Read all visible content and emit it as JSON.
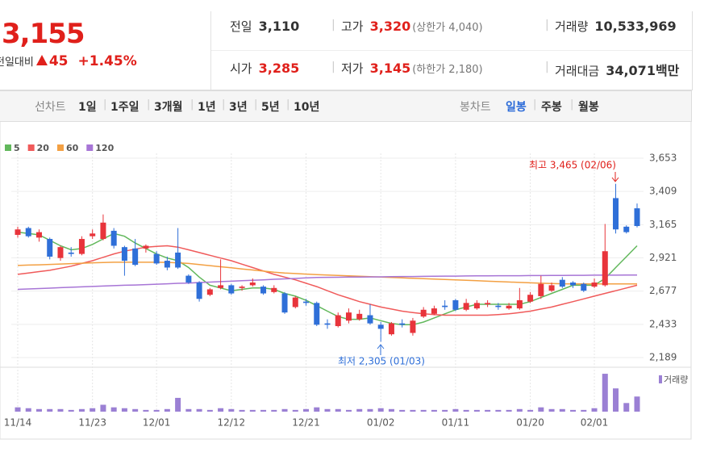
{
  "quote": {
    "price": "3,155",
    "change_label": "전일대비",
    "change": "45",
    "change_rate": "+1.45%",
    "items": [
      {
        "label": "전일",
        "value": "3,110"
      },
      {
        "label": "고가",
        "value": "3,320",
        "color": "#e0201b",
        "extra": "(상한가 4,040)"
      },
      {
        "label": "거래량",
        "value": "10,533,969"
      },
      {
        "label": "시가",
        "value": "3,285",
        "color": "#e0201b"
      },
      {
        "label": "저가",
        "value": "3,145",
        "color": "#e0201b",
        "extra": "(하한가 2,180)"
      },
      {
        "label": "거래대금",
        "value": "34,071백만"
      }
    ]
  },
  "toolbar": {
    "line_label": "선차트",
    "line_ranges": [
      "1일",
      "1주일",
      "3개월",
      "1년",
      "3년",
      "5년",
      "10년"
    ],
    "candle_label": "봉차트",
    "candle_ranges": [
      "일봉",
      "주봉",
      "월봉"
    ],
    "selected": "일봉"
  },
  "chart_data": {
    "type": "candlestick",
    "categories": [
      "11/14",
      null,
      null,
      null,
      null,
      null,
      null,
      "11/23",
      null,
      null,
      null,
      null,
      null,
      "12/01",
      null,
      null,
      null,
      null,
      null,
      null,
      "12/12",
      null,
      null,
      null,
      null,
      null,
      null,
      "12/21",
      null,
      null,
      null,
      null,
      null,
      null,
      "01/02",
      null,
      null,
      null,
      null,
      null,
      null,
      "01/11",
      null,
      null,
      null,
      null,
      null,
      null,
      "01/20",
      null,
      null,
      null,
      null,
      null,
      "02/01",
      null,
      null,
      null,
      null
    ],
    "open": [
      3090,
      3140,
      3070,
      3060,
      2920,
      2960,
      2950,
      3080,
      3060,
      3120,
      3000,
      2990,
      2990,
      2950,
      2900,
      2960,
      2790,
      2740,
      2650,
      2700,
      2720,
      2700,
      2720,
      2710,
      2670,
      2660,
      2560,
      2600,
      2590,
      2440,
      2420,
      2460,
      2470,
      2500,
      2430,
      2360,
      2440,
      2370,
      2490,
      2510,
      2570,
      2610,
      2540,
      2550,
      2580,
      2570,
      2550,
      2550,
      2600,
      2640,
      2680,
      2760,
      2740,
      2730,
      2710,
      2720,
      3360,
      3150,
      3285
    ],
    "high": [
      3150,
      3150,
      3130,
      3070,
      3010,
      3000,
      3080,
      3130,
      3240,
      3140,
      3010,
      3060,
      3020,
      2970,
      2930,
      3140,
      2800,
      2750,
      2700,
      2910,
      2730,
      2720,
      2770,
      2720,
      2720,
      2670,
      2640,
      2620,
      2600,
      2470,
      2520,
      2550,
      2540,
      2580,
      2450,
      2450,
      2470,
      2480,
      2560,
      2570,
      2610,
      2620,
      2620,
      2610,
      2610,
      2590,
      2590,
      2700,
      2670,
      2790,
      2740,
      2780,
      2750,
      2740,
      2770,
      3170,
      3465,
      3160,
      3320
    ],
    "low": [
      3070,
      3070,
      3040,
      2910,
      2900,
      2930,
      2940,
      3060,
      3050,
      2990,
      2790,
      2860,
      2960,
      2870,
      2830,
      2840,
      2730,
      2600,
      2640,
      2690,
      2650,
      2680,
      2710,
      2650,
      2660,
      2510,
      2550,
      2570,
      2420,
      2400,
      2410,
      2440,
      2460,
      2430,
      2305,
      2350,
      2410,
      2350,
      2480,
      2500,
      2540,
      2530,
      2530,
      2540,
      2560,
      2540,
      2540,
      2540,
      2590,
      2620,
      2670,
      2700,
      2700,
      2670,
      2700,
      2710,
      3100,
      3100,
      3145
    ],
    "close": [
      3130,
      3080,
      3110,
      2930,
      3000,
      2950,
      3060,
      3100,
      3180,
      3010,
      2900,
      2870,
      3010,
      2880,
      2850,
      2850,
      2740,
      2620,
      2690,
      2720,
      2660,
      2710,
      2740,
      2660,
      2700,
      2520,
      2630,
      2590,
      2430,
      2430,
      2500,
      2520,
      2510,
      2440,
      2400,
      2440,
      2430,
      2460,
      2540,
      2550,
      2560,
      2540,
      2590,
      2590,
      2590,
      2560,
      2570,
      2610,
      2650,
      2730,
      2720,
      2710,
      2720,
      2680,
      2740,
      2970,
      3130,
      3110,
      3155
    ],
    "up_color": "#e8343b",
    "down_color": "#2f6fd8",
    "series": [
      {
        "name": "5",
        "color": "#62b85c",
        "values": [
          3110,
          3100,
          3090,
          3050,
          3010,
          2980,
          2990,
          3020,
          3060,
          3100,
          3080,
          3030,
          2990,
          2950,
          2920,
          2900,
          2850,
          2780,
          2720,
          2700,
          2680,
          2690,
          2700,
          2700,
          2690,
          2660,
          2640,
          2610,
          2570,
          2530,
          2490,
          2470,
          2470,
          2480,
          2460,
          2440,
          2430,
          2430,
          2450,
          2480,
          2510,
          2540,
          2560,
          2580,
          2580,
          2580,
          2580,
          2580,
          2600,
          2630,
          2660,
          2690,
          2720,
          2720,
          2720,
          2770,
          2850,
          2930,
          3010
        ]
      },
      {
        "name": "20",
        "color": "#f05a5a",
        "values": [
          2800,
          2810,
          2820,
          2830,
          2845,
          2860,
          2880,
          2900,
          2925,
          2950,
          2970,
          2985,
          3000,
          3005,
          3010,
          3000,
          2980,
          2960,
          2940,
          2920,
          2900,
          2875,
          2850,
          2825,
          2800,
          2780,
          2760,
          2735,
          2710,
          2680,
          2650,
          2625,
          2600,
          2580,
          2560,
          2545,
          2530,
          2520,
          2510,
          2505,
          2500,
          2500,
          2500,
          2500,
          2500,
          2505,
          2510,
          2520,
          2530,
          2545,
          2560,
          2580,
          2600,
          2620,
          2640,
          2660,
          2680,
          2700,
          2720
        ]
      },
      {
        "name": "60",
        "color": "#f3a043",
        "values": [
          2865,
          2868,
          2870,
          2873,
          2876,
          2879,
          2882,
          2885,
          2887,
          2889,
          2889,
          2889,
          2889,
          2889,
          2888,
          2885,
          2880,
          2872,
          2864,
          2856,
          2848,
          2840,
          2832,
          2824,
          2816,
          2810,
          2806,
          2802,
          2798,
          2795,
          2792,
          2789,
          2786,
          2783,
          2780,
          2777,
          2774,
          2771,
          2768,
          2765,
          2762,
          2759,
          2756,
          2753,
          2750,
          2747,
          2744,
          2741,
          2738,
          2735,
          2733,
          2731,
          2730,
          2730,
          2730,
          2730,
          2730,
          2730,
          2730
        ]
      },
      {
        "name": "120",
        "color": "#a775d6",
        "values": [
          2690,
          2693,
          2696,
          2699,
          2702,
          2705,
          2708,
          2711,
          2714,
          2717,
          2720,
          2722,
          2725,
          2728,
          2731,
          2734,
          2736,
          2740,
          2743,
          2747,
          2750,
          2753,
          2757,
          2760,
          2764,
          2767,
          2770,
          2774,
          2777,
          2778,
          2779,
          2780,
          2780,
          2781,
          2782,
          2783,
          2784,
          2784,
          2785,
          2786,
          2787,
          2787,
          2788,
          2789,
          2789,
          2790,
          2790,
          2790,
          2791,
          2791,
          2792,
          2792,
          2793,
          2793,
          2794,
          2794,
          2794,
          2795,
          2795
        ]
      }
    ],
    "ylim": [
      2189,
      3653
    ],
    "yticks": [
      {
        "value": 3653,
        "label": "3,653"
      },
      {
        "value": 3409,
        "label": "3,409"
      },
      {
        "value": 3165,
        "label": "3,165"
      },
      {
        "value": 2921,
        "label": "2,921"
      },
      {
        "value": 2677,
        "label": "2,677"
      },
      {
        "value": 2433,
        "label": "2,433"
      },
      {
        "value": 2189,
        "label": "2,189"
      }
    ],
    "grid": true,
    "annotations": [
      "최고 3,465 (02/06)",
      "최저 2,305 (01/03)"
    ],
    "volume": {
      "name": "거래량",
      "color": "#9b80d4",
      "ylim": [
        0,
        27000000
      ],
      "values": [
        3000000,
        2400000,
        1800000,
        1800000,
        1800000,
        1200000,
        1800000,
        2400000,
        4800000,
        3000000,
        2400000,
        1800000,
        1200000,
        1200000,
        1800000,
        9600000,
        1800000,
        1800000,
        1200000,
        2400000,
        1800000,
        1200000,
        1200000,
        1200000,
        1200000,
        1800000,
        1200000,
        1800000,
        3000000,
        1800000,
        1800000,
        1200000,
        1800000,
        1800000,
        2400000,
        1800000,
        1200000,
        1200000,
        1200000,
        1200000,
        1200000,
        1800000,
        1200000,
        1200000,
        1200000,
        1200000,
        1200000,
        1800000,
        1200000,
        3000000,
        1800000,
        1800000,
        1200000,
        1200000,
        2400000,
        26400000,
        16200000,
        6000000,
        10533969
      ]
    }
  }
}
